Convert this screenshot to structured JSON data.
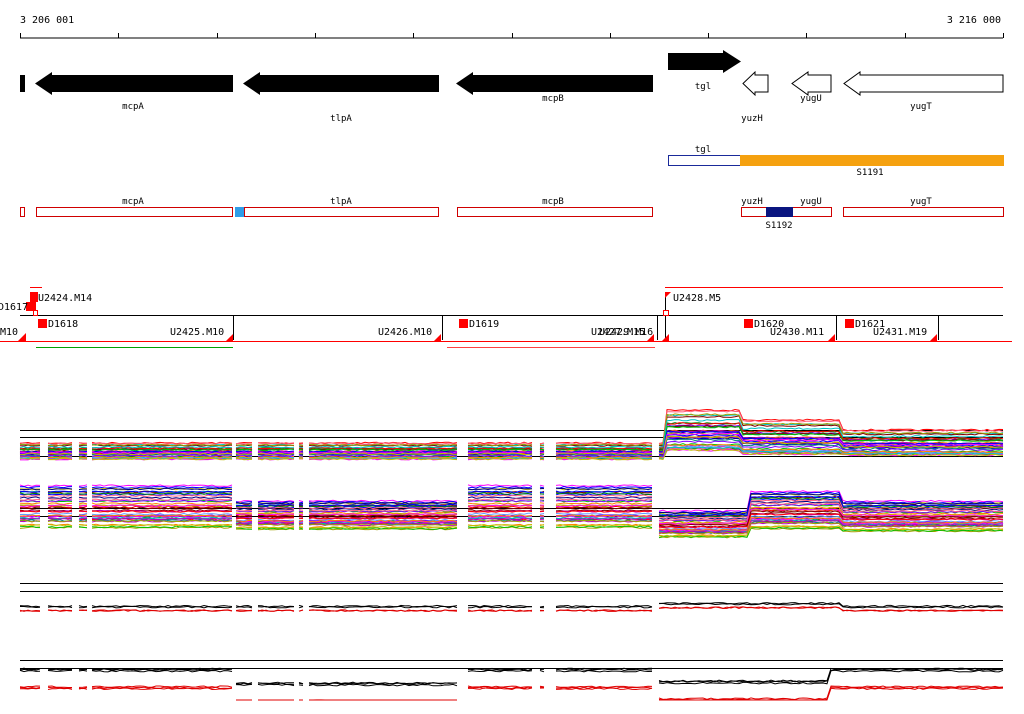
{
  "ruler": {
    "start_label": "3 206 001",
    "end_label": "3 216 000"
  },
  "gene_track": {
    "genes": [
      {
        "name": "",
        "strand": "-",
        "style": "filled"
      },
      {
        "name": "mcpA",
        "strand": "-",
        "style": "filled"
      },
      {
        "name": "tlpA",
        "strand": "-",
        "style": "filled"
      },
      {
        "name": "mcpB",
        "strand": "-",
        "style": "filled"
      },
      {
        "name": "tgl",
        "strand": "+",
        "style": "filled"
      },
      {
        "name": "yuzH",
        "strand": "-",
        "style": "outline"
      },
      {
        "name": "yugU",
        "strand": "-",
        "style": "outline"
      },
      {
        "name": "yugT",
        "strand": "-",
        "style": "outline"
      }
    ]
  },
  "transcript_track": {
    "tgl_label": "tgl",
    "segment_label": "S1191"
  },
  "feature_track": {
    "labels": [
      "mcpA",
      "tlpA",
      "mcpB",
      "yuzH",
      "yugU",
      "yugT"
    ],
    "segment_label": "S1192"
  },
  "probe_track": {
    "labels": [
      "D1617",
      "U2424.M14",
      "U2428.M5",
      "M10",
      "D1618",
      "U2425.M10",
      "U2426.M10",
      "D1619",
      "U2427.M15",
      "U2429.M16",
      "D1620",
      "U2430.M11",
      "D1621",
      "U2431.M19"
    ]
  },
  "colors": {
    "gene_filled": "#000000",
    "feature_outline": "#d00000",
    "segment_orange": "#f5a10f",
    "segment_navy": "#0a1580",
    "marker_blue": "#2f9de8",
    "probe_red": "#ff0000",
    "coverage_red": "#e00000",
    "coverage_green": "#00a000"
  },
  "profile_panels": [
    {
      "name": "expression-profiles-upper",
      "series_count": 40
    },
    {
      "name": "expression-profiles-lower",
      "series_count": 40
    },
    {
      "name": "tiling-signal-upper",
      "series_count": 4
    },
    {
      "name": "tiling-signal-lower",
      "series_count": 6
    }
  ]
}
